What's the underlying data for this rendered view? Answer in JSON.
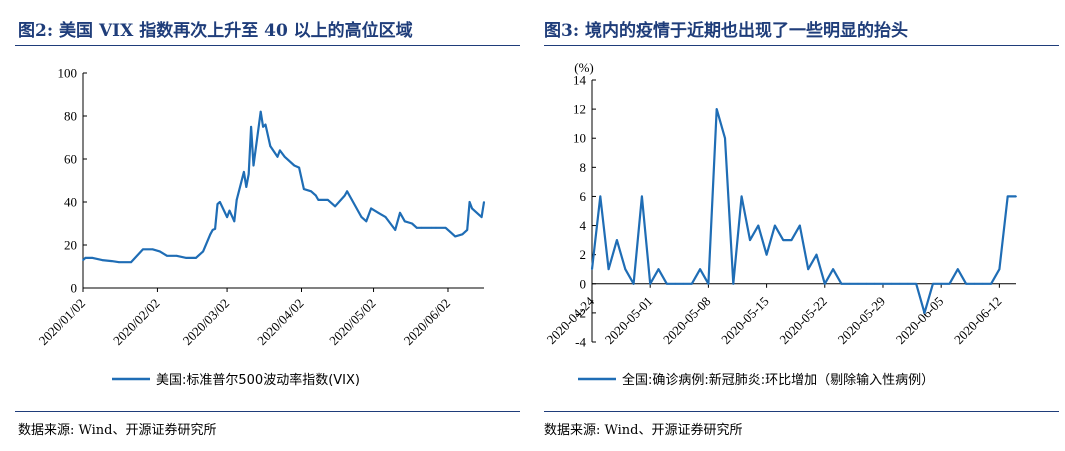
{
  "charts": [
    {
      "figure_title": "图2: 美国 VIX 指数再次上升至 40 以上的高位区域",
      "source": "数据来源: Wind、开源证券研究所",
      "series_color": "#1f6db5"
    },
    {
      "figure_title": "图3: 境内的疫情于近期也出现了一些明显的抬头",
      "source": "数据来源: Wind、开源证券研究所",
      "series_color": "#1f6db5"
    }
  ],
  "chart_data": [
    {
      "type": "line",
      "xlabel": "",
      "ylabel": "",
      "ylim": [
        0,
        100
      ],
      "yticks": [
        0,
        20,
        40,
        60,
        80,
        100
      ],
      "xlim": [
        "2020-01-02",
        "2020-06-17"
      ],
      "xticks": [
        "2020/01/02",
        "2020/02/02",
        "2020/03/02",
        "2020/04/02",
        "2020/05/02",
        "2020/06/02"
      ],
      "legend": "bottom",
      "grid": false,
      "series": [
        {
          "name": "美国:标准普尔500波动率指数(VIX)",
          "x": [
            "2020-01-02",
            "2020-01-03",
            "2020-01-06",
            "2020-01-10",
            "2020-01-14",
            "2020-01-17",
            "2020-01-22",
            "2020-01-27",
            "2020-01-31",
            "2020-02-03",
            "2020-02-06",
            "2020-02-10",
            "2020-02-14",
            "2020-02-18",
            "2020-02-21",
            "2020-02-24",
            "2020-02-25",
            "2020-02-26",
            "2020-02-27",
            "2020-02-28",
            "2020-03-02",
            "2020-03-03",
            "2020-03-05",
            "2020-03-06",
            "2020-03-09",
            "2020-03-10",
            "2020-03-11",
            "2020-03-12",
            "2020-03-13",
            "2020-03-16",
            "2020-03-17",
            "2020-03-18",
            "2020-03-20",
            "2020-03-23",
            "2020-03-24",
            "2020-03-26",
            "2020-03-30",
            "2020-04-01",
            "2020-04-03",
            "2020-04-06",
            "2020-04-08",
            "2020-04-09",
            "2020-04-13",
            "2020-04-16",
            "2020-04-20",
            "2020-04-21",
            "2020-04-23",
            "2020-04-27",
            "2020-04-29",
            "2020-05-01",
            "2020-05-04",
            "2020-05-07",
            "2020-05-11",
            "2020-05-13",
            "2020-05-15",
            "2020-05-18",
            "2020-05-20",
            "2020-05-22",
            "2020-05-26",
            "2020-05-28",
            "2020-06-01",
            "2020-06-03",
            "2020-06-05",
            "2020-06-08",
            "2020-06-10",
            "2020-06-11",
            "2020-06-12",
            "2020-06-15",
            "2020-06-16",
            "2020-06-17"
          ],
          "values": [
            13,
            14,
            14,
            13,
            12.5,
            12,
            12,
            18,
            18,
            17,
            15,
            15,
            14,
            14,
            17,
            25,
            27,
            27.5,
            39,
            40,
            33,
            36,
            31,
            41,
            54,
            47,
            53,
            75,
            57,
            82,
            75,
            76,
            66,
            61,
            64,
            61,
            57,
            56,
            46,
            45,
            43,
            41,
            41,
            38,
            43,
            45,
            41,
            33,
            31,
            37,
            35,
            33,
            27,
            35,
            31,
            30,
            28,
            28,
            28,
            28,
            28,
            26,
            24,
            25,
            27,
            40,
            37,
            34,
            33,
            40
          ]
        }
      ]
    },
    {
      "type": "line",
      "ylabel": "(%)",
      "ylim": [
        -4,
        14
      ],
      "yticks": [
        -4,
        -2,
        0,
        2,
        4,
        6,
        8,
        10,
        12,
        14
      ],
      "xlim": [
        "2020-04-24",
        "2020-06-14"
      ],
      "xticks": [
        "2020-04-24",
        "2020-05-01",
        "2020-05-08",
        "2020-05-15",
        "2020-05-22",
        "2020-05-29",
        "2020-06-05",
        "2020-06-12"
      ],
      "legend": "bottom",
      "grid": false,
      "series": [
        {
          "name": "全国:确诊病例:新冠肺炎:环比增加（剔除输入性病例）",
          "x": [
            "2020-04-24",
            "2020-04-25",
            "2020-04-26",
            "2020-04-27",
            "2020-04-28",
            "2020-04-29",
            "2020-04-30",
            "2020-05-01",
            "2020-05-02",
            "2020-05-03",
            "2020-05-04",
            "2020-05-05",
            "2020-05-06",
            "2020-05-07",
            "2020-05-08",
            "2020-05-09",
            "2020-05-10",
            "2020-05-11",
            "2020-05-12",
            "2020-05-13",
            "2020-05-14",
            "2020-05-15",
            "2020-05-16",
            "2020-05-17",
            "2020-05-18",
            "2020-05-19",
            "2020-05-20",
            "2020-05-21",
            "2020-05-22",
            "2020-05-23",
            "2020-05-24",
            "2020-05-25",
            "2020-05-26",
            "2020-05-27",
            "2020-05-28",
            "2020-05-29",
            "2020-05-30",
            "2020-05-31",
            "2020-06-01",
            "2020-06-02",
            "2020-06-03",
            "2020-06-04",
            "2020-06-05",
            "2020-06-06",
            "2020-06-07",
            "2020-06-08",
            "2020-06-09",
            "2020-06-10",
            "2020-06-11",
            "2020-06-12",
            "2020-06-13",
            "2020-06-14"
          ],
          "values": [
            1,
            6,
            1,
            3,
            1,
            0,
            6,
            0,
            1,
            0,
            0,
            0,
            0,
            1,
            0,
            12,
            10,
            0,
            6,
            3,
            4,
            2,
            4,
            3,
            3,
            4,
            1,
            2,
            0,
            1,
            0,
            0,
            0,
            0,
            0,
            0,
            0,
            0,
            0,
            0,
            -2,
            0,
            0,
            0,
            1,
            0,
            0,
            0,
            0,
            1,
            6,
            6
          ]
        }
      ]
    }
  ]
}
